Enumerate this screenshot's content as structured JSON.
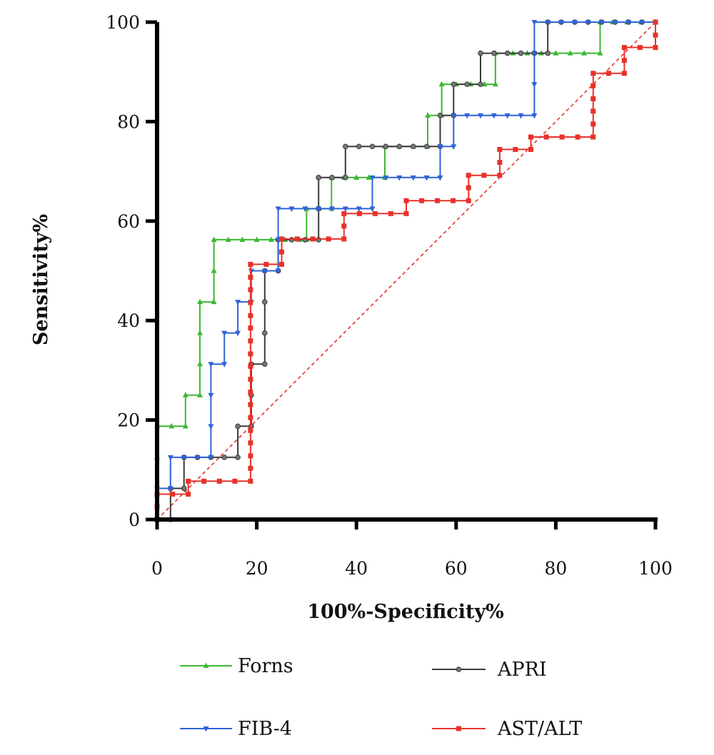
{
  "chart_data": {
    "type": "line",
    "title": "",
    "xlabel": "100%-Specificity%",
    "ylabel": "Sensitivity%",
    "xlim": [
      0,
      100
    ],
    "ylim": [
      0,
      100
    ],
    "xticks": [
      "0",
      "20",
      "40",
      "60",
      "80",
      "100"
    ],
    "yticks": [
      "0",
      "20",
      "40",
      "60",
      "80",
      "100"
    ],
    "grid": false,
    "legend_position": "bottom",
    "reference_line": {
      "x": [
        0,
        100
      ],
      "y": [
        0,
        100
      ],
      "color": "#e8322a",
      "style": "dashed"
    },
    "series": [
      {
        "name": "Forns",
        "color": "#3cb832",
        "marker": "triangle-up",
        "points": [
          [
            0,
            0
          ],
          [
            0,
            12.5
          ],
          [
            0,
            18.75
          ],
          [
            2.9,
            18.75
          ],
          [
            5.7,
            18.75
          ],
          [
            5.7,
            25
          ],
          [
            8.6,
            25
          ],
          [
            8.6,
            31.25
          ],
          [
            8.6,
            37.5
          ],
          [
            8.6,
            43.75
          ],
          [
            11.4,
            43.75
          ],
          [
            11.4,
            50
          ],
          [
            11.4,
            56.25
          ],
          [
            14.3,
            56.25
          ],
          [
            17.1,
            56.25
          ],
          [
            20,
            56.25
          ],
          [
            22.9,
            56.25
          ],
          [
            25.7,
            56.25
          ],
          [
            28.6,
            56.25
          ],
          [
            30,
            56.25
          ],
          [
            30,
            62.5
          ],
          [
            32.5,
            62.5
          ],
          [
            35,
            62.5
          ],
          [
            35,
            68.75
          ],
          [
            37.5,
            68.75
          ],
          [
            40,
            68.75
          ],
          [
            42.5,
            68.75
          ],
          [
            45.7,
            68.75
          ],
          [
            45.7,
            75
          ],
          [
            48.6,
            75
          ],
          [
            51.4,
            75
          ],
          [
            54.3,
            75
          ],
          [
            54.3,
            81.25
          ],
          [
            57.1,
            81.25
          ],
          [
            57.1,
            87.5
          ],
          [
            60,
            87.5
          ],
          [
            62.9,
            87.5
          ],
          [
            65.7,
            87.5
          ],
          [
            67.9,
            87.5
          ],
          [
            67.9,
            93.75
          ],
          [
            71.4,
            93.75
          ],
          [
            74.3,
            93.75
          ],
          [
            77.1,
            93.75
          ],
          [
            80,
            93.75
          ],
          [
            82.9,
            93.75
          ],
          [
            85.7,
            93.75
          ],
          [
            88.9,
            93.75
          ],
          [
            88.9,
            100
          ],
          [
            91.4,
            100
          ],
          [
            94.3,
            100
          ],
          [
            97.1,
            100
          ],
          [
            100,
            100
          ]
        ]
      },
      {
        "name": "APRI",
        "color": "#3a3a3a",
        "marker": "circle",
        "points": [
          [
            0,
            0
          ],
          [
            2.7,
            0
          ],
          [
            2.7,
            6.25
          ],
          [
            5.4,
            6.25
          ],
          [
            5.4,
            12.5
          ],
          [
            8.1,
            12.5
          ],
          [
            10.8,
            12.5
          ],
          [
            13.5,
            12.5
          ],
          [
            16.2,
            12.5
          ],
          [
            16.2,
            18.75
          ],
          [
            18.9,
            18.75
          ],
          [
            18.9,
            25
          ],
          [
            18.9,
            31.25
          ],
          [
            21.6,
            31.25
          ],
          [
            21.6,
            37.5
          ],
          [
            21.6,
            43.75
          ],
          [
            21.6,
            50
          ],
          [
            24.3,
            50
          ],
          [
            24.3,
            56.25
          ],
          [
            27,
            56.25
          ],
          [
            29.7,
            56.25
          ],
          [
            32.4,
            56.25
          ],
          [
            32.4,
            62.5
          ],
          [
            32.4,
            68.75
          ],
          [
            35.1,
            68.75
          ],
          [
            37.8,
            68.75
          ],
          [
            37.8,
            75
          ],
          [
            40.5,
            75
          ],
          [
            43.2,
            75
          ],
          [
            45.9,
            75
          ],
          [
            48.6,
            75
          ],
          [
            51.4,
            75
          ],
          [
            54.1,
            75
          ],
          [
            56.8,
            75
          ],
          [
            56.8,
            81.25
          ],
          [
            59.5,
            81.25
          ],
          [
            59.5,
            87.5
          ],
          [
            62.2,
            87.5
          ],
          [
            64.9,
            87.5
          ],
          [
            64.9,
            93.75
          ],
          [
            67.6,
            93.75
          ],
          [
            70.3,
            93.75
          ],
          [
            73,
            93.75
          ],
          [
            75.7,
            93.75
          ],
          [
            78.4,
            93.75
          ],
          [
            78.4,
            100
          ],
          [
            81.1,
            100
          ],
          [
            83.8,
            100
          ],
          [
            86.5,
            100
          ],
          [
            89.2,
            100
          ],
          [
            91.9,
            100
          ],
          [
            94.6,
            100
          ],
          [
            97.3,
            100
          ],
          [
            100,
            100
          ]
        ]
      },
      {
        "name": "FIB-4",
        "color": "#2f63d6",
        "marker": "triangle-down",
        "points": [
          [
            0,
            0
          ],
          [
            0,
            6.25
          ],
          [
            2.7,
            6.25
          ],
          [
            2.7,
            12.5
          ],
          [
            5.4,
            12.5
          ],
          [
            8.1,
            12.5
          ],
          [
            10.8,
            12.5
          ],
          [
            10.8,
            18.75
          ],
          [
            10.8,
            25
          ],
          [
            10.8,
            31.25
          ],
          [
            13.5,
            31.25
          ],
          [
            13.5,
            37.5
          ],
          [
            16.2,
            37.5
          ],
          [
            16.2,
            43.75
          ],
          [
            18.9,
            43.75
          ],
          [
            18.9,
            50
          ],
          [
            21.6,
            50
          ],
          [
            24.3,
            50
          ],
          [
            24.3,
            56.25
          ],
          [
            24.3,
            62.5
          ],
          [
            27,
            62.5
          ],
          [
            29.7,
            62.5
          ],
          [
            32.4,
            62.5
          ],
          [
            35.1,
            62.5
          ],
          [
            37.8,
            62.5
          ],
          [
            40.5,
            62.5
          ],
          [
            43.2,
            62.5
          ],
          [
            43.2,
            68.75
          ],
          [
            45.9,
            68.75
          ],
          [
            48.6,
            68.75
          ],
          [
            51.4,
            68.75
          ],
          [
            54.1,
            68.75
          ],
          [
            56.8,
            68.75
          ],
          [
            56.8,
            75
          ],
          [
            59.5,
            75
          ],
          [
            59.5,
            81.25
          ],
          [
            62.2,
            81.25
          ],
          [
            64.9,
            81.25
          ],
          [
            67.6,
            81.25
          ],
          [
            70.3,
            81.25
          ],
          [
            73,
            81.25
          ],
          [
            75.7,
            81.25
          ],
          [
            75.7,
            87.5
          ],
          [
            75.7,
            93.75
          ],
          [
            75.7,
            100
          ],
          [
            78.4,
            100
          ],
          [
            81.1,
            100
          ],
          [
            83.8,
            100
          ],
          [
            86.5,
            100
          ],
          [
            89.2,
            100
          ],
          [
            91.9,
            100
          ],
          [
            94.6,
            100
          ],
          [
            97.3,
            100
          ],
          [
            100,
            100
          ]
        ]
      },
      {
        "name": "AST/ALT",
        "color": "#e8322a",
        "marker": "square",
        "points": [
          [
            0,
            0
          ],
          [
            0,
            2.6
          ],
          [
            0,
            5.1
          ],
          [
            3.1,
            5.1
          ],
          [
            6.25,
            5.1
          ],
          [
            6.25,
            7.7
          ],
          [
            9.4,
            7.7
          ],
          [
            12.5,
            7.7
          ],
          [
            15.6,
            7.7
          ],
          [
            18.75,
            7.7
          ],
          [
            18.75,
            10.3
          ],
          [
            18.75,
            12.8
          ],
          [
            18.75,
            15.4
          ],
          [
            18.75,
            17.9
          ],
          [
            18.75,
            20.5
          ],
          [
            18.75,
            23.1
          ],
          [
            18.75,
            25.6
          ],
          [
            18.75,
            28.2
          ],
          [
            18.75,
            30.8
          ],
          [
            18.75,
            33.3
          ],
          [
            18.75,
            35.9
          ],
          [
            18.75,
            38.5
          ],
          [
            18.75,
            41
          ],
          [
            18.75,
            43.6
          ],
          [
            18.75,
            46.2
          ],
          [
            18.75,
            48.7
          ],
          [
            18.75,
            51.3
          ],
          [
            21.9,
            51.3
          ],
          [
            25,
            51.3
          ],
          [
            25,
            53.8
          ],
          [
            25,
            56.4
          ],
          [
            28.1,
            56.4
          ],
          [
            31.25,
            56.4
          ],
          [
            34.4,
            56.4
          ],
          [
            37.5,
            56.4
          ],
          [
            37.5,
            59
          ],
          [
            37.5,
            61.5
          ],
          [
            40.6,
            61.5
          ],
          [
            43.75,
            61.5
          ],
          [
            46.9,
            61.5
          ],
          [
            50,
            61.5
          ],
          [
            50,
            64.1
          ],
          [
            53.1,
            64.1
          ],
          [
            56.25,
            64.1
          ],
          [
            59.4,
            64.1
          ],
          [
            62.5,
            64.1
          ],
          [
            62.5,
            66.7
          ],
          [
            62.5,
            69.2
          ],
          [
            65.6,
            69.2
          ],
          [
            68.75,
            69.2
          ],
          [
            68.75,
            71.8
          ],
          [
            68.75,
            74.4
          ],
          [
            71.9,
            74.4
          ],
          [
            75,
            74.4
          ],
          [
            75,
            76.9
          ],
          [
            78.1,
            76.9
          ],
          [
            81.25,
            76.9
          ],
          [
            84.4,
            76.9
          ],
          [
            87.5,
            76.9
          ],
          [
            87.5,
            79.5
          ],
          [
            87.5,
            82.1
          ],
          [
            87.5,
            84.6
          ],
          [
            87.5,
            87.2
          ],
          [
            87.5,
            89.7
          ],
          [
            90.6,
            89.7
          ],
          [
            93.75,
            89.7
          ],
          [
            93.75,
            92.3
          ],
          [
            93.75,
            94.9
          ],
          [
            96.9,
            94.9
          ],
          [
            100,
            94.9
          ],
          [
            100,
            97.4
          ],
          [
            100,
            100
          ]
        ]
      }
    ]
  }
}
